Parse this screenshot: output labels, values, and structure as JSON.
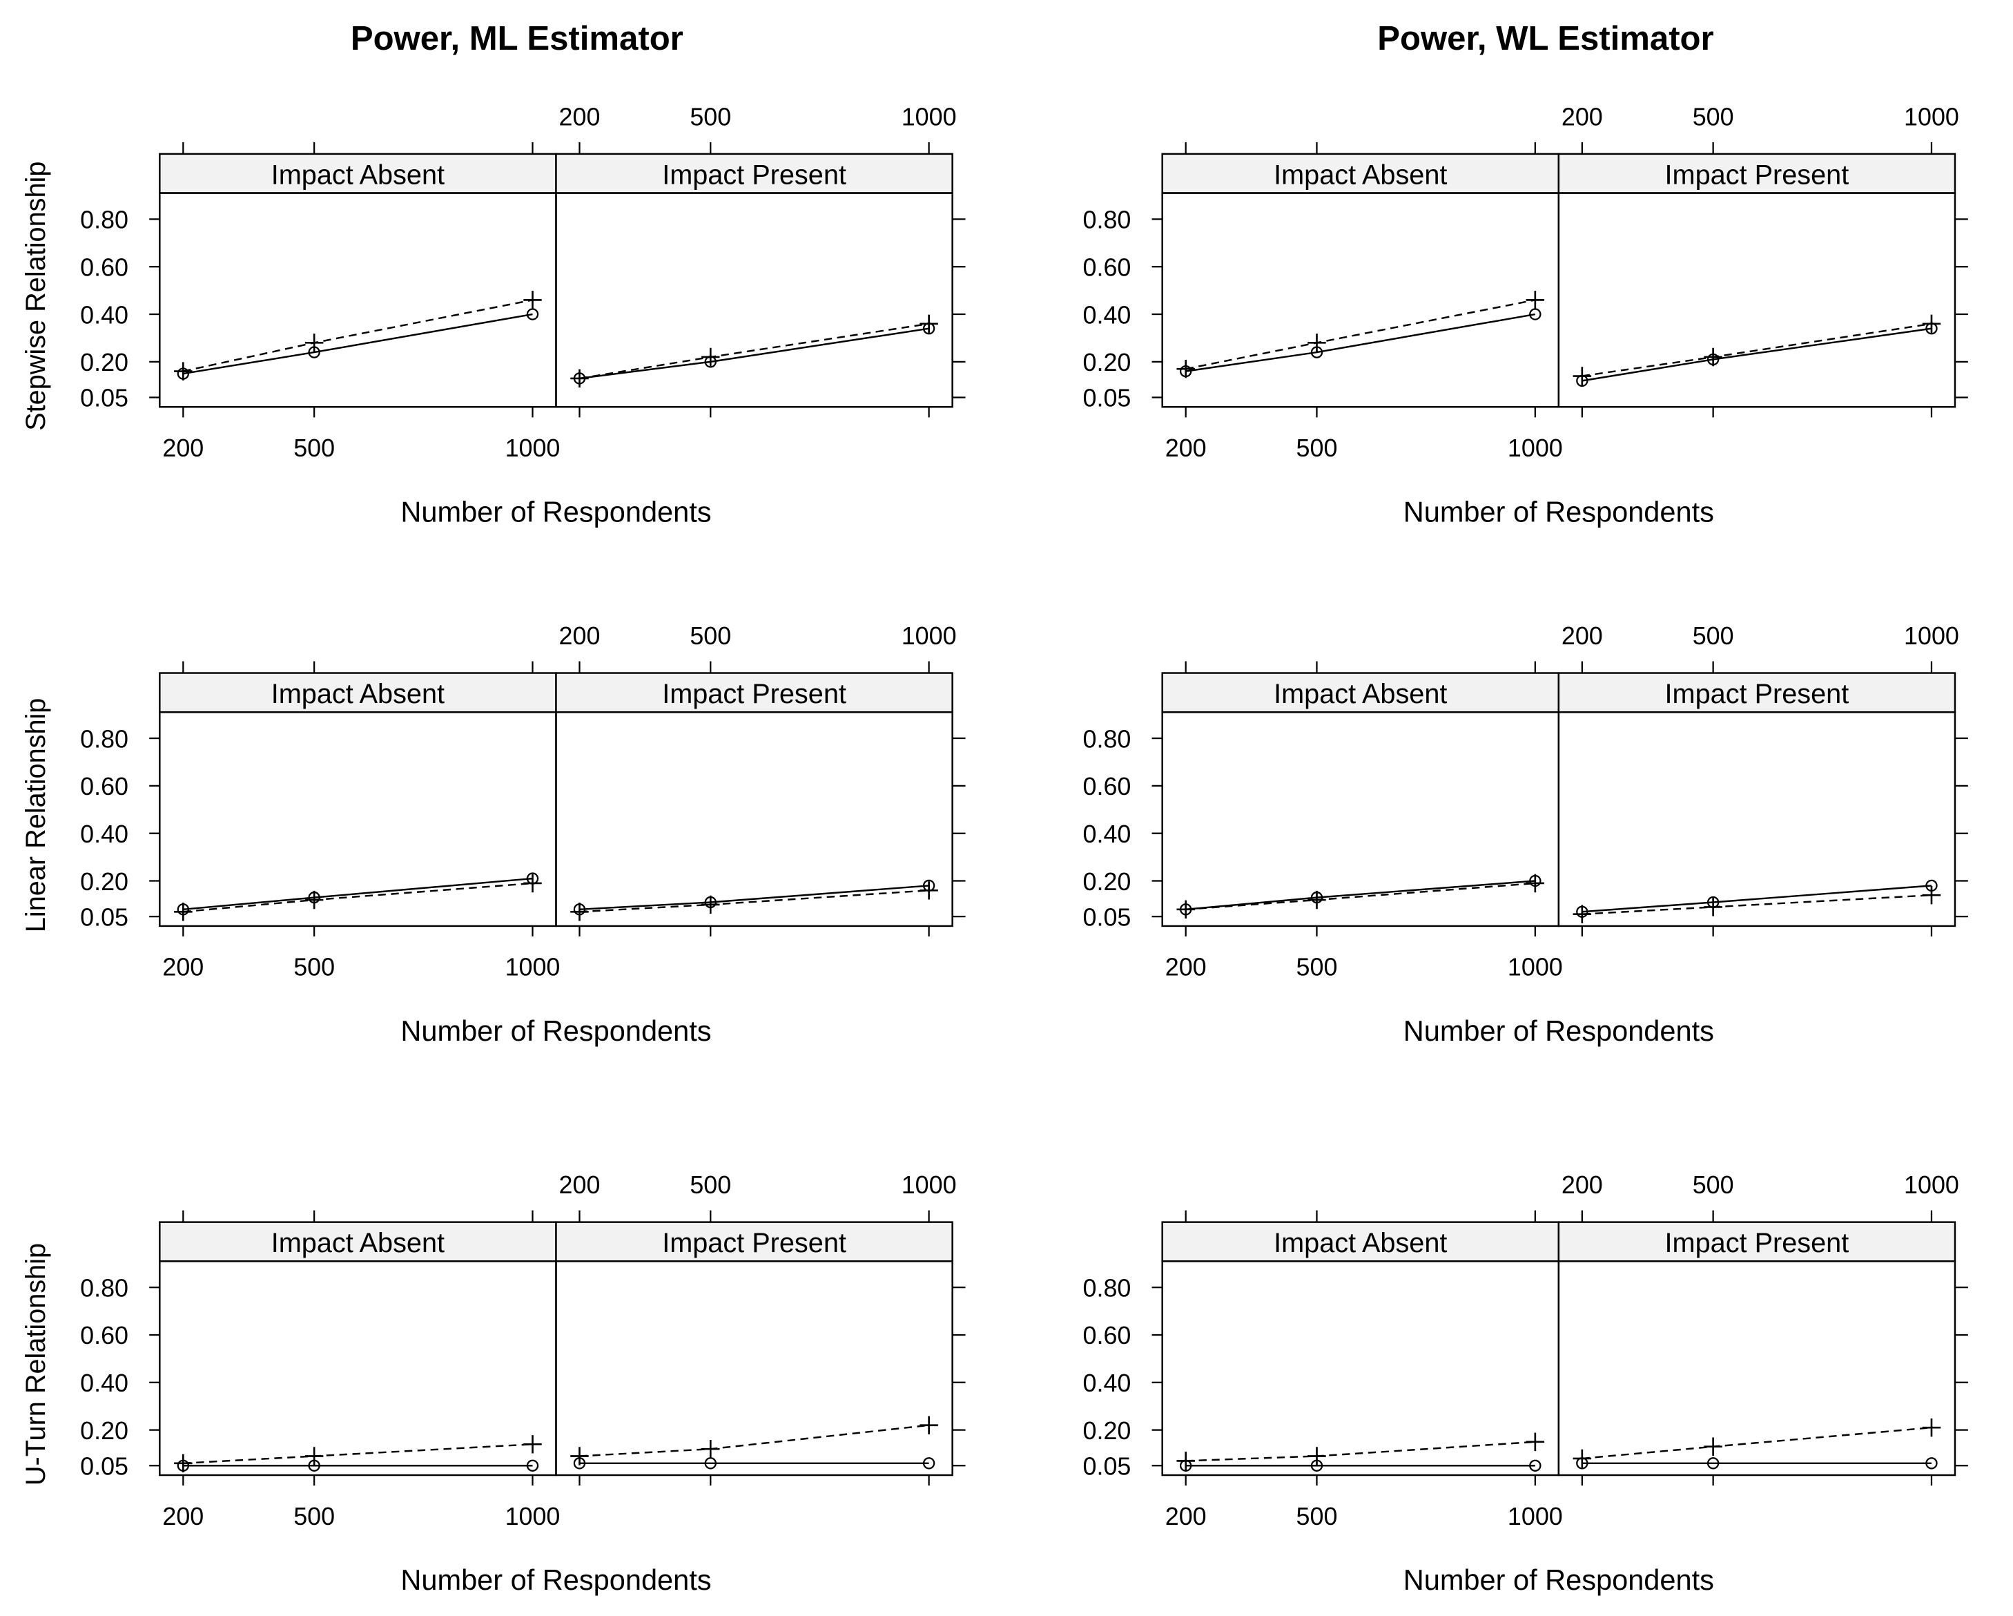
{
  "column_titles": [
    "Power, ML Estimator",
    "Power, WL Estimator"
  ],
  "row_labels": [
    "Stepwise Relationship",
    "Linear Relationship",
    "U-Turn Relationship"
  ],
  "panel_labels": [
    "Impact Absent",
    "Impact Present"
  ],
  "xlabel": "Number of Respondents",
  "x_ticks": [
    200,
    500,
    1000
  ],
  "x_tick_labels": [
    "200",
    "500",
    "1000"
  ],
  "y_ticks": [
    0.05,
    0.2,
    0.4,
    0.6,
    0.8
  ],
  "y_tick_labels": [
    "0.05",
    "0.20",
    "0.40",
    "0.60",
    "0.80"
  ],
  "chart_data": [
    {
      "type": "line",
      "title": "Power, ML Estimator",
      "ylabel": "Stepwise Relationship",
      "xlabel": "Number of Respondents",
      "x": [
        200,
        500,
        1000
      ],
      "ylim": [
        0.01,
        0.91
      ],
      "panels": [
        {
          "name": "Impact Absent",
          "series": [
            {
              "marker": "circle",
              "line": "solid",
              "values": [
                0.15,
                0.24,
                0.4
              ]
            },
            {
              "marker": "plus",
              "line": "dashed",
              "values": [
                0.16,
                0.28,
                0.46
              ]
            }
          ]
        },
        {
          "name": "Impact Present",
          "series": [
            {
              "marker": "circle",
              "line": "solid",
              "values": [
                0.13,
                0.2,
                0.34
              ]
            },
            {
              "marker": "plus",
              "line": "dashed",
              "values": [
                0.13,
                0.22,
                0.36
              ]
            }
          ]
        }
      ]
    },
    {
      "type": "line",
      "title": "Power, WL Estimator",
      "ylabel": "Stepwise Relationship",
      "xlabel": "Number of Respondents",
      "x": [
        200,
        500,
        1000
      ],
      "ylim": [
        0.01,
        0.91
      ],
      "panels": [
        {
          "name": "Impact Absent",
          "series": [
            {
              "marker": "circle",
              "line": "solid",
              "values": [
                0.16,
                0.24,
                0.4
              ]
            },
            {
              "marker": "plus",
              "line": "dashed",
              "values": [
                0.17,
                0.28,
                0.46
              ]
            }
          ]
        },
        {
          "name": "Impact Present",
          "series": [
            {
              "marker": "circle",
              "line": "solid",
              "values": [
                0.12,
                0.21,
                0.34
              ]
            },
            {
              "marker": "plus",
              "line": "dashed",
              "values": [
                0.14,
                0.22,
                0.36
              ]
            }
          ]
        }
      ]
    },
    {
      "type": "line",
      "title": "Power, ML Estimator",
      "ylabel": "Linear Relationship",
      "xlabel": "Number of Respondents",
      "x": [
        200,
        500,
        1000
      ],
      "ylim": [
        0.01,
        0.91
      ],
      "panels": [
        {
          "name": "Impact Absent",
          "series": [
            {
              "marker": "circle",
              "line": "solid",
              "values": [
                0.08,
                0.13,
                0.21
              ]
            },
            {
              "marker": "plus",
              "line": "dashed",
              "values": [
                0.07,
                0.12,
                0.19
              ]
            }
          ]
        },
        {
          "name": "Impact Present",
          "series": [
            {
              "marker": "circle",
              "line": "solid",
              "values": [
                0.08,
                0.11,
                0.18
              ]
            },
            {
              "marker": "plus",
              "line": "dashed",
              "values": [
                0.07,
                0.1,
                0.16
              ]
            }
          ]
        }
      ]
    },
    {
      "type": "line",
      "title": "Power, WL Estimator",
      "ylabel": "Linear Relationship",
      "xlabel": "Number of Respondents",
      "x": [
        200,
        500,
        1000
      ],
      "ylim": [
        0.01,
        0.91
      ],
      "panels": [
        {
          "name": "Impact Absent",
          "series": [
            {
              "marker": "circle",
              "line": "solid",
              "values": [
                0.08,
                0.13,
                0.2
              ]
            },
            {
              "marker": "plus",
              "line": "dashed",
              "values": [
                0.08,
                0.12,
                0.19
              ]
            }
          ]
        },
        {
          "name": "Impact Present",
          "series": [
            {
              "marker": "circle",
              "line": "solid",
              "values": [
                0.07,
                0.11,
                0.18
              ]
            },
            {
              "marker": "plus",
              "line": "dashed",
              "values": [
                0.06,
                0.09,
                0.14
              ]
            }
          ]
        }
      ]
    },
    {
      "type": "line",
      "title": "Power, ML Estimator",
      "ylabel": "U-Turn Relationship",
      "xlabel": "Number of Respondents",
      "x": [
        200,
        500,
        1000
      ],
      "ylim": [
        0.01,
        0.91
      ],
      "panels": [
        {
          "name": "Impact Absent",
          "series": [
            {
              "marker": "circle",
              "line": "solid",
              "values": [
                0.05,
                0.05,
                0.05
              ]
            },
            {
              "marker": "plus",
              "line": "dashed",
              "values": [
                0.06,
                0.09,
                0.14
              ]
            }
          ]
        },
        {
          "name": "Impact Present",
          "series": [
            {
              "marker": "circle",
              "line": "solid",
              "values": [
                0.06,
                0.06,
                0.06
              ]
            },
            {
              "marker": "plus",
              "line": "dashed",
              "values": [
                0.09,
                0.12,
                0.22
              ]
            }
          ]
        }
      ]
    },
    {
      "type": "line",
      "title": "Power, WL Estimator",
      "ylabel": "U-Turn Relationship",
      "xlabel": "Number of Respondents",
      "x": [
        200,
        500,
        1000
      ],
      "ylim": [
        0.01,
        0.91
      ],
      "panels": [
        {
          "name": "Impact Absent",
          "series": [
            {
              "marker": "circle",
              "line": "solid",
              "values": [
                0.05,
                0.05,
                0.05
              ]
            },
            {
              "marker": "plus",
              "line": "dashed",
              "values": [
                0.07,
                0.09,
                0.15
              ]
            }
          ]
        },
        {
          "name": "Impact Present",
          "series": [
            {
              "marker": "circle",
              "line": "solid",
              "values": [
                0.06,
                0.06,
                0.06
              ]
            },
            {
              "marker": "plus",
              "line": "dashed",
              "values": [
                0.08,
                0.13,
                0.21
              ]
            }
          ]
        }
      ]
    }
  ]
}
